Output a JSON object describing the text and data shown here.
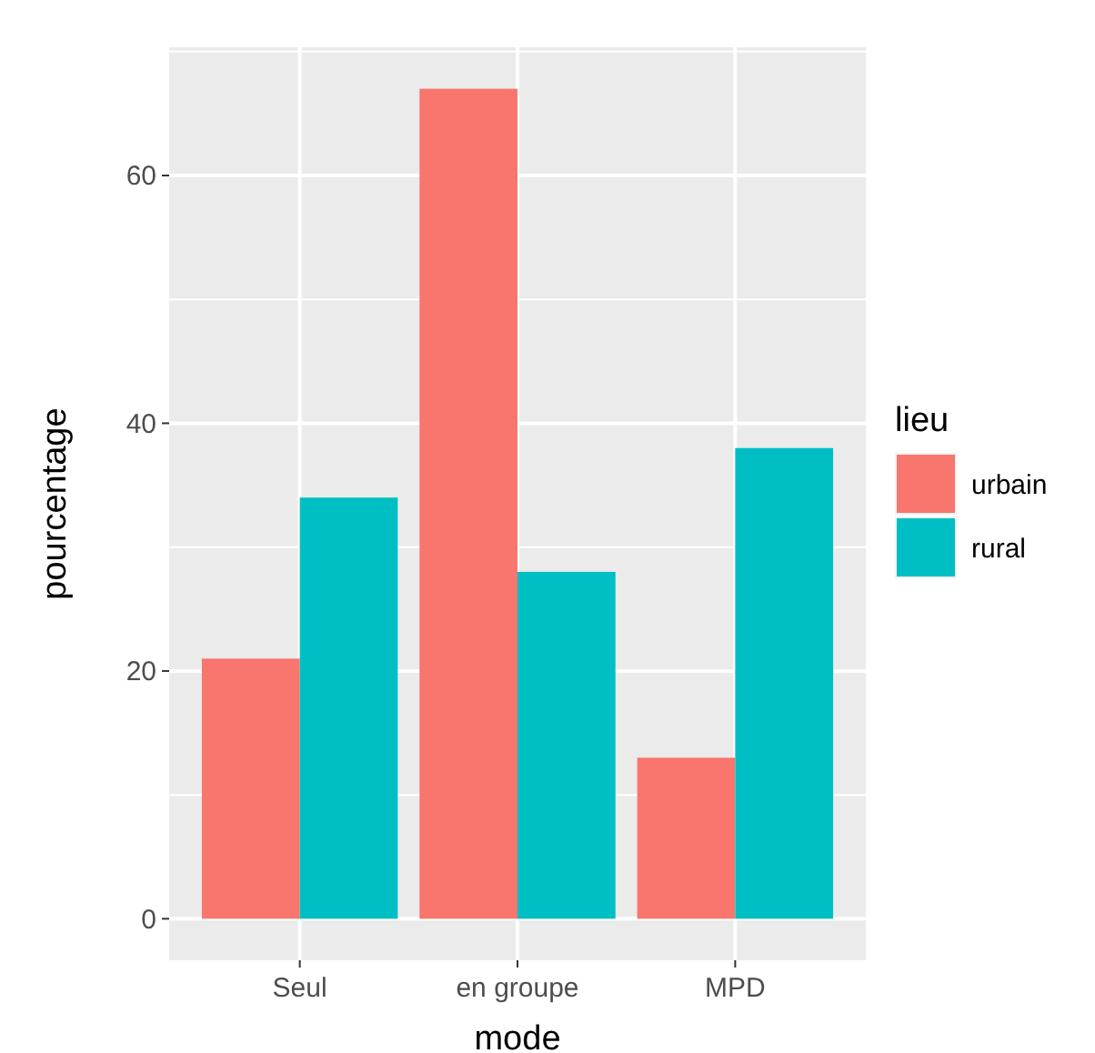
{
  "chart_data": {
    "type": "bar",
    "xlabel": "mode",
    "ylabel": "pourcentage",
    "legend_title": "lieu",
    "categories": [
      "Seul",
      "en groupe",
      "MPD"
    ],
    "series": [
      {
        "name": "urbain",
        "color": "#f8766d",
        "values": [
          21,
          67,
          13
        ]
      },
      {
        "name": "rural",
        "color": "#00bfc4",
        "values": [
          34,
          28,
          38
        ]
      }
    ],
    "ylim": [
      -3.35,
      70.35
    ],
    "yticks": [
      0,
      20,
      40,
      60
    ],
    "grid": true,
    "legend": "right"
  }
}
